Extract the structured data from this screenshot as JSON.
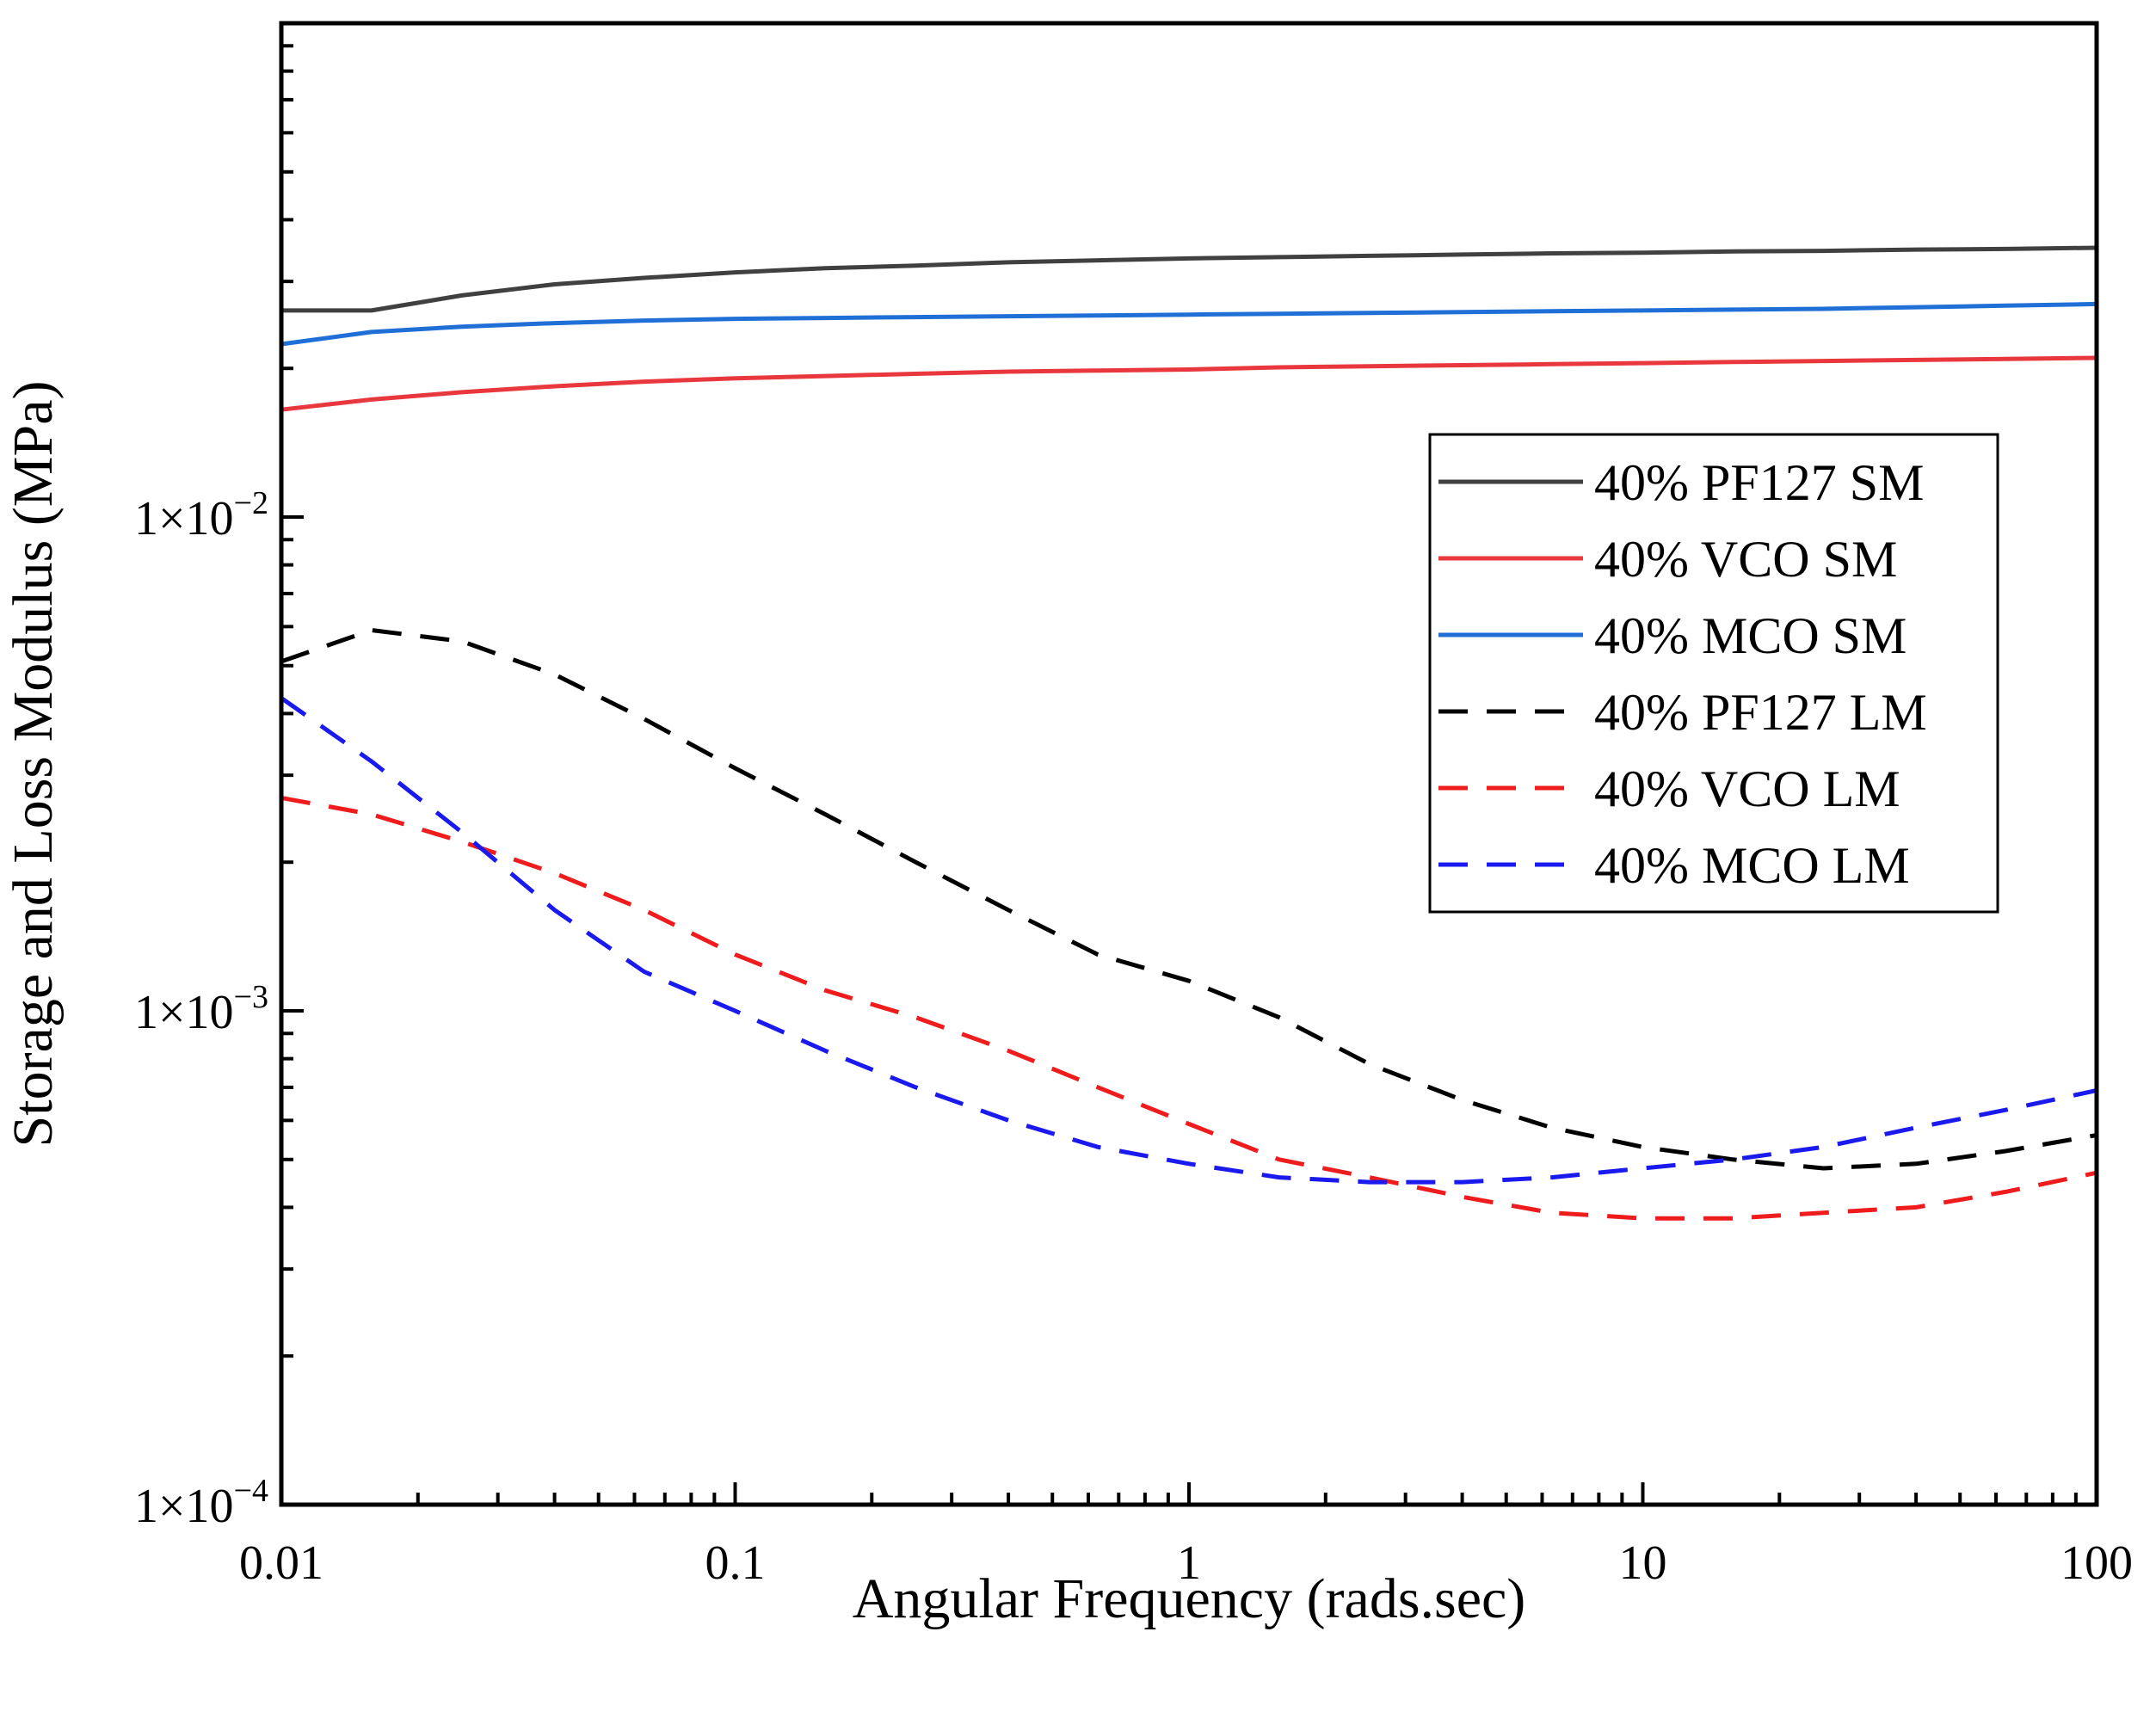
{
  "chart_data": {
    "type": "line",
    "xscale": "log",
    "yscale": "log",
    "xlabel": "Angular Frequency (rads.sec)",
    "ylabel": "Storage and Loss Modulus (MPa)",
    "xlim": [
      0.01,
      100
    ],
    "ylim": [
      0.0001,
      0.1
    ],
    "x_tick_labels": [
      {
        "value": 0.01,
        "label": "0.01"
      },
      {
        "value": 0.1,
        "label": "0.1"
      },
      {
        "value": 1,
        "label": "1"
      },
      {
        "value": 10,
        "label": "10"
      },
      {
        "value": 100,
        "label": "100"
      }
    ],
    "y_tick_labels": [
      {
        "value": 0.01,
        "mant": "1×10",
        "exp": "−2"
      },
      {
        "value": 0.001,
        "mant": "1×10",
        "exp": "−3"
      },
      {
        "value": 0.0001,
        "mant": "1×10",
        "exp": "−4"
      }
    ],
    "legend_position": "right",
    "series": [
      {
        "name": "40% PF127 SM",
        "color": "#404040",
        "dashed": false,
        "x": [
          0.01,
          0.0158,
          0.025,
          0.04,
          0.063,
          0.1,
          0.158,
          0.25,
          0.4,
          0.63,
          1,
          1.58,
          2.5,
          4,
          6.3,
          10,
          15.8,
          25,
          40,
          63,
          100
        ],
        "y": [
          0.0262,
          0.0262,
          0.0281,
          0.0296,
          0.0305,
          0.0313,
          0.0319,
          0.0323,
          0.0328,
          0.0331,
          0.0334,
          0.0336,
          0.0338,
          0.034,
          0.0342,
          0.0343,
          0.0345,
          0.0346,
          0.0348,
          0.0349,
          0.0351
        ]
      },
      {
        "name": "40% VCO SM",
        "color": "#e8383d",
        "dashed": false,
        "x": [
          0.01,
          0.0158,
          0.025,
          0.04,
          0.063,
          0.1,
          0.158,
          0.25,
          0.4,
          0.63,
          1,
          1.58,
          2.5,
          4,
          6.3,
          10,
          15.8,
          25,
          40,
          63,
          100
        ],
        "y": [
          0.0165,
          0.0173,
          0.0179,
          0.0184,
          0.0188,
          0.0191,
          0.0193,
          0.0195,
          0.0197,
          0.0198,
          0.0199,
          0.0201,
          0.0202,
          0.0203,
          0.0204,
          0.0205,
          0.0206,
          0.0207,
          0.0208,
          0.0209,
          0.021
        ]
      },
      {
        "name": "40% MCO SM",
        "color": "#1f6fd6",
        "dashed": false,
        "x": [
          0.01,
          0.0158,
          0.025,
          0.04,
          0.063,
          0.1,
          0.158,
          0.25,
          0.4,
          0.63,
          1,
          1.58,
          2.5,
          4,
          6.3,
          10,
          15.8,
          25,
          40,
          63,
          100
        ],
        "y": [
          0.0224,
          0.0237,
          0.0243,
          0.0247,
          0.025,
          0.0252,
          0.0253,
          0.0254,
          0.0255,
          0.0256,
          0.0257,
          0.0258,
          0.0259,
          0.026,
          0.0261,
          0.0262,
          0.0263,
          0.0264,
          0.0266,
          0.0268,
          0.027
        ]
      },
      {
        "name": "40% PF127 LM",
        "color": "#000000",
        "dashed": true,
        "x": [
          0.01,
          0.0158,
          0.025,
          0.04,
          0.063,
          0.1,
          0.158,
          0.25,
          0.4,
          0.63,
          1,
          1.58,
          2.5,
          4,
          6.3,
          10,
          15.8,
          25,
          40,
          63,
          100
        ],
        "y": [
          0.0051,
          0.0059,
          0.0056,
          0.0048,
          0.0039,
          0.0031,
          0.0025,
          0.002,
          0.0016,
          0.0013,
          0.00115,
          0.00097,
          0.00078,
          0.00066,
          0.00058,
          0.00053,
          0.0005,
          0.00048,
          0.00049,
          0.00052,
          0.00056
        ]
      },
      {
        "name": "40% VCO LM",
        "color": "#ee1c1c",
        "dashed": true,
        "x": [
          0.01,
          0.0158,
          0.025,
          0.04,
          0.063,
          0.1,
          0.158,
          0.25,
          0.4,
          0.63,
          1,
          1.58,
          2.5,
          4,
          6.3,
          10,
          15.8,
          25,
          40,
          63,
          100
        ],
        "y": [
          0.0027,
          0.0025,
          0.0022,
          0.0019,
          0.0016,
          0.0013,
          0.0011,
          0.00097,
          0.00083,
          0.0007,
          0.00059,
          0.0005,
          0.00046,
          0.00042,
          0.00039,
          0.00038,
          0.00038,
          0.00039,
          0.0004,
          0.00043,
          0.00047
        ]
      },
      {
        "name": "40% MCO LM",
        "color": "#1a1aee",
        "dashed": true,
        "x": [
          0.01,
          0.0158,
          0.025,
          0.04,
          0.063,
          0.1,
          0.158,
          0.25,
          0.4,
          0.63,
          1,
          1.58,
          2.5,
          4,
          6.3,
          10,
          15.8,
          25,
          40,
          63,
          100
        ],
        "y": [
          0.0043,
          0.0032,
          0.0023,
          0.0016,
          0.0012,
          0.001,
          0.00083,
          0.0007,
          0.0006,
          0.00053,
          0.00049,
          0.00046,
          0.00045,
          0.00045,
          0.00046,
          0.00048,
          0.0005,
          0.00053,
          0.00058,
          0.00063,
          0.00069
        ]
      }
    ]
  }
}
